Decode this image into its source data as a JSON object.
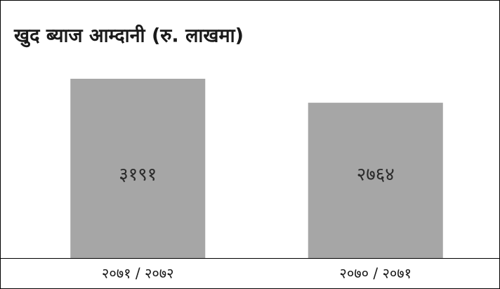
{
  "chart_data": {
    "type": "bar",
    "title": "खुद ब्याज आम्दानी (रु. लाखमा)",
    "categories": [
      "२०७१ / २०७२",
      "२०७० / २०७१"
    ],
    "values": [
      3191,
      2764
    ],
    "value_labels": [
      "३१९१",
      "२७६४"
    ],
    "color": "#a6a6a6"
  }
}
